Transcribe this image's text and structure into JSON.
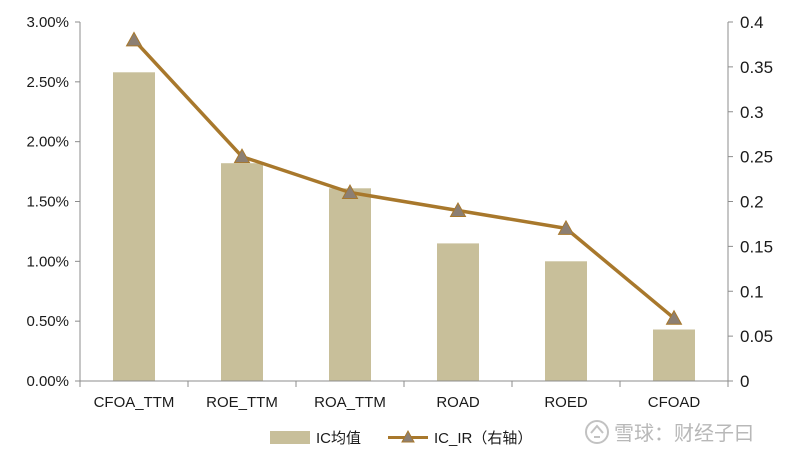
{
  "chart_data": {
    "type": "bar",
    "categories": [
      "CFOA_TTM",
      "ROE_TTM",
      "ROA_TTM",
      "ROAD",
      "ROED",
      "CFOAD"
    ],
    "series": [
      {
        "name": "IC均值",
        "type": "bar",
        "axis": "left",
        "color": "#c8bf9a",
        "values": [
          0.0258,
          0.0182,
          0.0161,
          0.0115,
          0.01,
          0.0043
        ]
      },
      {
        "name": "IC_IR（右轴）",
        "type": "line",
        "axis": "right",
        "color": "#a8782c",
        "marker_color": "#8c7f73",
        "values": [
          0.38,
          0.25,
          0.21,
          0.19,
          0.17,
          0.07
        ]
      }
    ],
    "y_left": {
      "ylim": [
        0,
        0.03
      ],
      "ticks": [
        0,
        0.005,
        0.01,
        0.015,
        0.02,
        0.025,
        0.03
      ],
      "tick_labels": [
        "0.00%",
        "0.50%",
        "1.00%",
        "1.50%",
        "2.00%",
        "2.50%",
        "3.00%"
      ]
    },
    "y_right": {
      "ylim": [
        0,
        0.4
      ],
      "ticks": [
        0,
        0.05,
        0.1,
        0.15,
        0.2,
        0.25,
        0.3,
        0.35,
        0.4
      ],
      "tick_labels": [
        "0",
        "0.05",
        "0.1",
        "0.15",
        "0.2",
        "0.25",
        "0.3",
        "0.35",
        "0.4"
      ]
    },
    "grid": false,
    "legend_position": "bottom-center",
    "title": "",
    "xlabel": "",
    "ylabel": ""
  },
  "legend": {
    "bar_label": "IC均值",
    "line_label": "IC_IR（右轴）"
  },
  "watermark": {
    "text": "雪球：财经子曰"
  }
}
